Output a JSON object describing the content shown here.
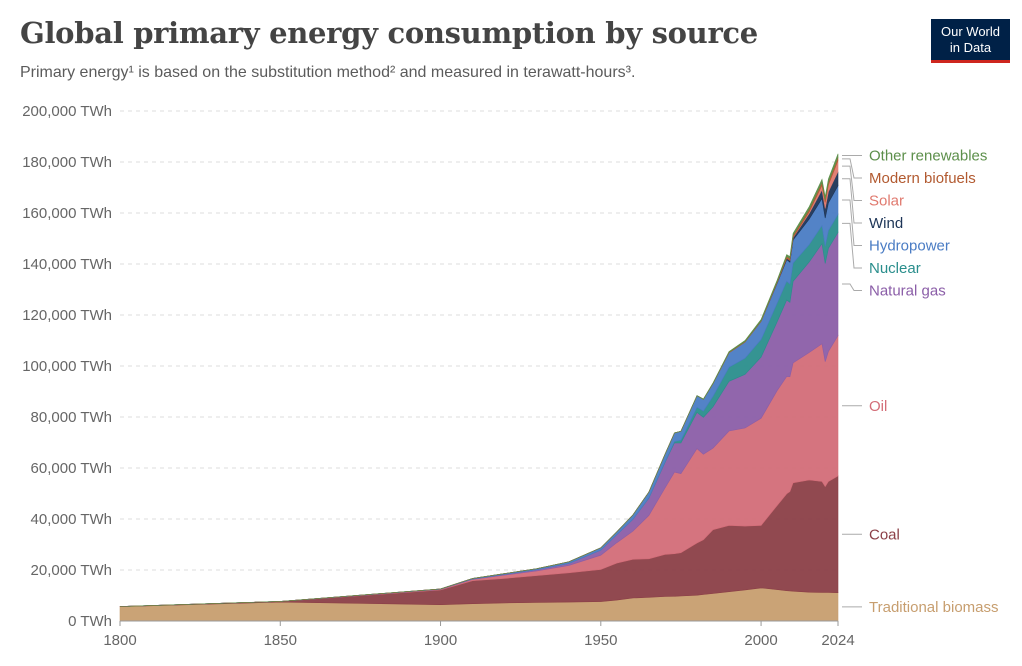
{
  "header": {
    "title": "Global primary energy consumption by source",
    "subtitle": "Primary energy¹ is based on the substitution method² and measured in terawatt-hours³.",
    "logo_line1": "Our World",
    "logo_line2": "in Data"
  },
  "chart_data": {
    "type": "area",
    "stacked": true,
    "title": "Global primary energy consumption by source",
    "subtitle": "Primary energy¹ is based on the substitution method² and measured in terawatt-hours³.",
    "xlabel": "",
    "ylabel": "",
    "xlim": [
      1800,
      2024
    ],
    "ylim": [
      0,
      200000
    ],
    "y_unit_suffix": " TWh",
    "grid": "horizontal dashed",
    "legend_placement": "right, labels at series ends",
    "x_ticks": [
      "1800",
      "1850",
      "1900",
      "1950",
      "2000",
      "2024"
    ],
    "y_ticks": [
      0,
      20000,
      40000,
      60000,
      80000,
      100000,
      120000,
      140000,
      160000,
      180000,
      200000
    ],
    "y_tick_labels": [
      "0 TWh",
      "20,000 TWh",
      "40,000 TWh",
      "60,000 TWh",
      "80,000 TWh",
      "100,000 TWh",
      "120,000 TWh",
      "140,000 TWh",
      "160,000 TWh",
      "180,000 TWh",
      "200,000 TWh"
    ],
    "x": [
      1800,
      1850,
      1900,
      1910,
      1920,
      1930,
      1940,
      1950,
      1955,
      1960,
      1965,
      1970,
      1973,
      1975,
      1980,
      1982,
      1985,
      1990,
      1995,
      2000,
      2005,
      2008,
      2009,
      2010,
      2015,
      2019,
      2020,
      2021,
      2024
    ],
    "series": [
      {
        "name": "Traditional biomass",
        "color": "#c79e6f",
        "values": [
          5600,
          7400,
          6400,
          6800,
          7100,
          7300,
          7400,
          7600,
          8200,
          9000,
          9300,
          9600,
          9700,
          9800,
          10100,
          10400,
          10800,
          11500,
          12200,
          13000,
          12300,
          11900,
          11800,
          11700,
          11300,
          11200,
          11200,
          11200,
          11100
        ]
      },
      {
        "name": "Coal",
        "color": "#8b3f47",
        "values": [
          100,
          300,
          5800,
          9000,
          9600,
          10500,
          11500,
          12600,
          14500,
          15200,
          15100,
          16500,
          16700,
          17000,
          20500,
          21500,
          25000,
          26000,
          25000,
          24500,
          33000,
          38000,
          39000,
          42500,
          44000,
          43500,
          41500,
          43500,
          45800
        ]
      },
      {
        "name": "Oil",
        "color": "#d36d78",
        "values": [
          0,
          0,
          200,
          500,
          1300,
          1800,
          2900,
          5600,
          8000,
          11000,
          17000,
          26000,
          32000,
          31000,
          37000,
          33500,
          32000,
          37000,
          38500,
          42000,
          45000,
          46000,
          45000,
          47000,
          50000,
          54000,
          49000,
          51000,
          55000
        ]
      },
      {
        "name": "Natural gas",
        "color": "#8b5ea8",
        "values": [
          0,
          0,
          100,
          200,
          300,
          500,
          800,
          2000,
          3200,
          4700,
          6800,
          10000,
          11500,
          12000,
          14200,
          14500,
          16200,
          19500,
          21000,
          24000,
          27000,
          30000,
          29200,
          32000,
          35500,
          39300,
          38500,
          40400,
          40500
        ]
      },
      {
        "name": "Nuclear",
        "color": "#2a8e8c",
        "values": [
          0,
          0,
          0,
          0,
          0,
          0,
          0,
          0,
          0,
          0,
          100,
          200,
          550,
          1100,
          2000,
          2400,
          4100,
          5500,
          6300,
          6900,
          7300,
          7300,
          7100,
          7200,
          6800,
          7100,
          6800,
          7000,
          7100
        ]
      },
      {
        "name": "Hydropower",
        "color": "#4a7cc4",
        "values": [
          0,
          0,
          100,
          200,
          300,
          400,
          600,
          900,
          1100,
          1700,
          2300,
          3000,
          3300,
          3500,
          4500,
          4600,
          5000,
          5700,
          6400,
          7100,
          7800,
          8500,
          8600,
          9000,
          10000,
          10600,
          11000,
          10900,
          11200
        ]
      },
      {
        "name": "Wind",
        "color": "#1d3557",
        "values": [
          0,
          0,
          0,
          0,
          0,
          0,
          0,
          0,
          0,
          0,
          0,
          0,
          0,
          0,
          0,
          0,
          0,
          10,
          20,
          80,
          270,
          570,
          700,
          900,
          2200,
          3400,
          3800,
          4300,
          5500
        ]
      },
      {
        "name": "Solar",
        "color": "#e07a6f",
        "values": [
          0,
          0,
          0,
          0,
          0,
          0,
          0,
          0,
          0,
          0,
          0,
          0,
          0,
          0,
          0,
          0,
          0,
          0,
          0,
          5,
          20,
          60,
          100,
          140,
          700,
          1800,
          2300,
          2700,
          4400
        ]
      },
      {
        "name": "Modern biofuels",
        "color": "#b25a30",
        "values": [
          0,
          0,
          0,
          0,
          0,
          0,
          0,
          0,
          0,
          0,
          0,
          0,
          0,
          0,
          50,
          60,
          80,
          150,
          170,
          190,
          350,
          650,
          700,
          800,
          1000,
          1150,
          1100,
          1150,
          1300
        ]
      },
      {
        "name": "Other renewables",
        "color": "#5c8f4a",
        "values": [
          0,
          0,
          0,
          0,
          0,
          0,
          0,
          0,
          0,
          0,
          0,
          0,
          0,
          50,
          100,
          120,
          200,
          300,
          400,
          500,
          600,
          700,
          700,
          800,
          1000,
          1150,
          1150,
          1200,
          1300
        ]
      }
    ]
  }
}
